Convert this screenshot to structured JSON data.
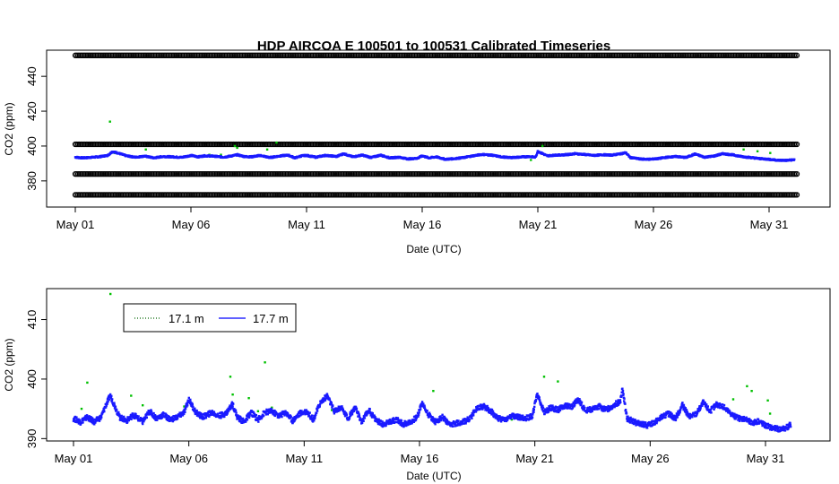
{
  "chart_data": [
    {
      "type": "scatter",
      "title": "HDP   AIRCOA  E   100501  to  100531   Calibrated Timeseries",
      "xlabel": "Date (UTC)",
      "ylabel": "CO2 (ppm)",
      "xlim": [
        0,
        31
      ],
      "ylim": [
        365,
        455
      ],
      "x_ticks": [
        {
          "label": "May 01",
          "x": 0
        },
        {
          "label": "May 06",
          "x": 5
        },
        {
          "label": "May 11",
          "x": 10
        },
        {
          "label": "May 16",
          "x": 15
        },
        {
          "label": "May 21",
          "x": 20
        },
        {
          "label": "May 26",
          "x": 25
        },
        {
          "label": "May 31",
          "x": 30
        }
      ],
      "y_ticks": [
        380,
        400,
        420,
        440
      ],
      "series": [
        {
          "name": "calibration levels",
          "color": "#000000",
          "style": "open-circle-band",
          "levels": [
            372,
            384,
            401,
            452
          ],
          "x_range": [
            0,
            31.2
          ]
        },
        {
          "name": "17.1 m",
          "color": "#00c000",
          "style": "points",
          "x": [
            1.5,
            1.7,
            3.05,
            5.8,
            6.3,
            6.9,
            7.0,
            8.3,
            8.7,
            10.6,
            11.1,
            19.7,
            20.2,
            28.9,
            29.5,
            30.05
          ],
          "y": [
            414,
            396,
            398,
            395,
            395,
            400,
            399,
            398,
            402,
            394,
            394,
            392,
            400,
            398,
            397,
            396
          ]
        },
        {
          "name": "17.7 m",
          "color": "#1a1aff",
          "style": "dense-points",
          "x": [
            0,
            0.3,
            0.6,
            1.0,
            1.4,
            1.6,
            1.8,
            2.2,
            2.6,
            3.0,
            3.4,
            3.8,
            4.2,
            4.6,
            5.0,
            5.3,
            5.6,
            6.0,
            6.4,
            6.8,
            7.0,
            7.3,
            7.6,
            8.0,
            8.4,
            8.8,
            9.2,
            9.5,
            9.8,
            10.0,
            10.4,
            10.8,
            11.0,
            11.3,
            11.6,
            12.0,
            12.4,
            12.8,
            13.2,
            13.6,
            14.0,
            14.4,
            14.8,
            15.0,
            15.3,
            15.6,
            16.0,
            16.4,
            16.8,
            17.2,
            17.6,
            18.0,
            18.4,
            18.8,
            19.2,
            19.6,
            19.9,
            20.0,
            20.4,
            20.8,
            21.2,
            21.6,
            22.0,
            22.4,
            22.8,
            23.2,
            23.6,
            23.8,
            24.0,
            24.4,
            24.8,
            25.2,
            25.6,
            26.0,
            26.4,
            26.8,
            27.2,
            27.6,
            28.0,
            28.4,
            28.8,
            29.2,
            29.6,
            30.0,
            30.4,
            30.8,
            31.1
          ],
          "y": [
            393.6,
            393.2,
            393.4,
            393.8,
            394.6,
            396.8,
            396.2,
            394.4,
            393.6,
            394.2,
            393.2,
            394.0,
            393.8,
            393.5,
            394.6,
            393.8,
            394.4,
            394.2,
            393.6,
            394.4,
            395.0,
            394.0,
            393.8,
            394.6,
            393.4,
            394.2,
            394.8,
            393.2,
            394.4,
            394.6,
            393.6,
            394.6,
            394.4,
            394.0,
            395.6,
            393.8,
            394.8,
            393.4,
            394.8,
            393.2,
            393.6,
            392.6,
            393.0,
            394.4,
            393.2,
            393.8,
            392.4,
            392.8,
            393.4,
            394.4,
            395.2,
            394.8,
            393.8,
            393.4,
            393.6,
            394.0,
            393.6,
            397.0,
            394.4,
            394.8,
            395.0,
            395.6,
            395.2,
            394.6,
            395.0,
            394.8,
            395.6,
            396.2,
            393.4,
            392.6,
            392.4,
            392.8,
            393.6,
            394.0,
            393.4,
            395.4,
            393.6,
            394.2,
            395.6,
            395.0,
            394.0,
            393.4,
            392.8,
            392.4,
            391.8,
            391.8,
            392.2
          ]
        }
      ],
      "grid": false
    },
    {
      "type": "scatter",
      "title": "",
      "xlabel": "Date (UTC)",
      "ylabel": "CO2 (ppm)",
      "xlim": [
        0,
        31
      ],
      "ylim": [
        389.6,
        415.2
      ],
      "x_ticks": [
        {
          "label": "May 01",
          "x": 0
        },
        {
          "label": "May 06",
          "x": 5
        },
        {
          "label": "May 11",
          "x": 10
        },
        {
          "label": "May 16",
          "x": 15
        },
        {
          "label": "May 21",
          "x": 20
        },
        {
          "label": "May 26",
          "x": 25
        },
        {
          "label": "May 31",
          "x": 30
        }
      ],
      "y_ticks": [
        390,
        400,
        410
      ],
      "legend": {
        "placement": "top-left",
        "entries": [
          {
            "label": "17.1 m",
            "color": "#006400",
            "line": "dotted"
          },
          {
            "label": "17.7 m",
            "color": "#0000ff",
            "line": "solid"
          }
        ]
      },
      "series": [
        {
          "name": "17.1 m",
          "color": "#00c000",
          "style": "points",
          "x": [
            0.35,
            0.6,
            1.6,
            2.5,
            3.0,
            4.8,
            6.8,
            6.9,
            7.6,
            8.0,
            8.3,
            8.6,
            11.2,
            15.6,
            19.0,
            20.4,
            21.0,
            28.6,
            29.2,
            29.4,
            30.1,
            30.2
          ],
          "y": [
            395.0,
            399.4,
            414.3,
            397.2,
            395.6,
            395.4,
            400.4,
            397.4,
            396.8,
            394.6,
            402.8,
            395.2,
            394.8,
            398.0,
            393.2,
            400.4,
            399.6,
            396.6,
            398.8,
            398.0,
            396.4,
            394.2
          ]
        },
        {
          "name": "17.7 m",
          "color": "#1a1aff",
          "style": "dense-points",
          "x": [
            0,
            0.3,
            0.6,
            0.9,
            1.2,
            1.4,
            1.6,
            1.8,
            2.0,
            2.3,
            2.6,
            3.0,
            3.3,
            3.6,
            3.9,
            4.2,
            4.5,
            4.8,
            5.0,
            5.3,
            5.6,
            6.0,
            6.3,
            6.6,
            6.9,
            7.1,
            7.4,
            7.7,
            8.0,
            8.3,
            8.6,
            8.9,
            9.2,
            9.5,
            9.8,
            10.1,
            10.4,
            10.7,
            11.0,
            11.3,
            11.6,
            11.9,
            12.2,
            12.5,
            12.8,
            13.1,
            13.4,
            13.7,
            14.0,
            14.3,
            14.6,
            14.9,
            15.1,
            15.4,
            15.7,
            16.0,
            16.3,
            16.6,
            16.9,
            17.2,
            17.5,
            17.8,
            18.1,
            18.4,
            18.7,
            19.0,
            19.3,
            19.6,
            19.9,
            20.1,
            20.4,
            20.7,
            21.0,
            21.3,
            21.6,
            21.9,
            22.2,
            22.5,
            22.8,
            23.1,
            23.4,
            23.7,
            23.8,
            24.0,
            24.3,
            24.6,
            24.9,
            25.2,
            25.5,
            25.8,
            26.1,
            26.4,
            26.7,
            27.0,
            27.3,
            27.6,
            27.9,
            28.2,
            28.5,
            28.8,
            29.1,
            29.4,
            29.7,
            30.0,
            30.3,
            30.6,
            30.9,
            31.1
          ],
          "y": [
            393.4,
            392.8,
            393.6,
            392.8,
            393.6,
            395.6,
            397.2,
            395.4,
            393.6,
            393.0,
            394.0,
            392.8,
            394.6,
            393.4,
            394.0,
            393.2,
            393.6,
            394.4,
            396.6,
            394.4,
            393.6,
            394.4,
            393.8,
            394.2,
            395.8,
            393.6,
            392.8,
            394.4,
            393.2,
            394.4,
            394.6,
            393.8,
            394.4,
            393.0,
            394.2,
            394.6,
            393.2,
            396.0,
            397.2,
            394.6,
            395.2,
            393.4,
            395.2,
            392.8,
            394.8,
            393.2,
            392.4,
            392.8,
            393.2,
            392.4,
            392.8,
            393.6,
            396.0,
            394.0,
            392.8,
            393.6,
            392.2,
            392.6,
            392.8,
            393.4,
            395.2,
            395.4,
            394.6,
            393.4,
            393.2,
            393.8,
            393.6,
            393.4,
            393.8,
            397.6,
            394.4,
            395.2,
            394.8,
            395.6,
            395.4,
            396.6,
            394.6,
            395.0,
            395.4,
            394.8,
            395.6,
            396.2,
            398.2,
            393.4,
            392.8,
            392.4,
            392.2,
            392.8,
            393.6,
            394.2,
            393.4,
            395.6,
            393.6,
            394.2,
            396.0,
            394.6,
            395.8,
            395.2,
            394.2,
            393.4,
            393.4,
            392.6,
            393.0,
            392.2,
            391.8,
            391.6,
            391.8,
            392.4
          ]
        }
      ],
      "grid": false
    }
  ]
}
